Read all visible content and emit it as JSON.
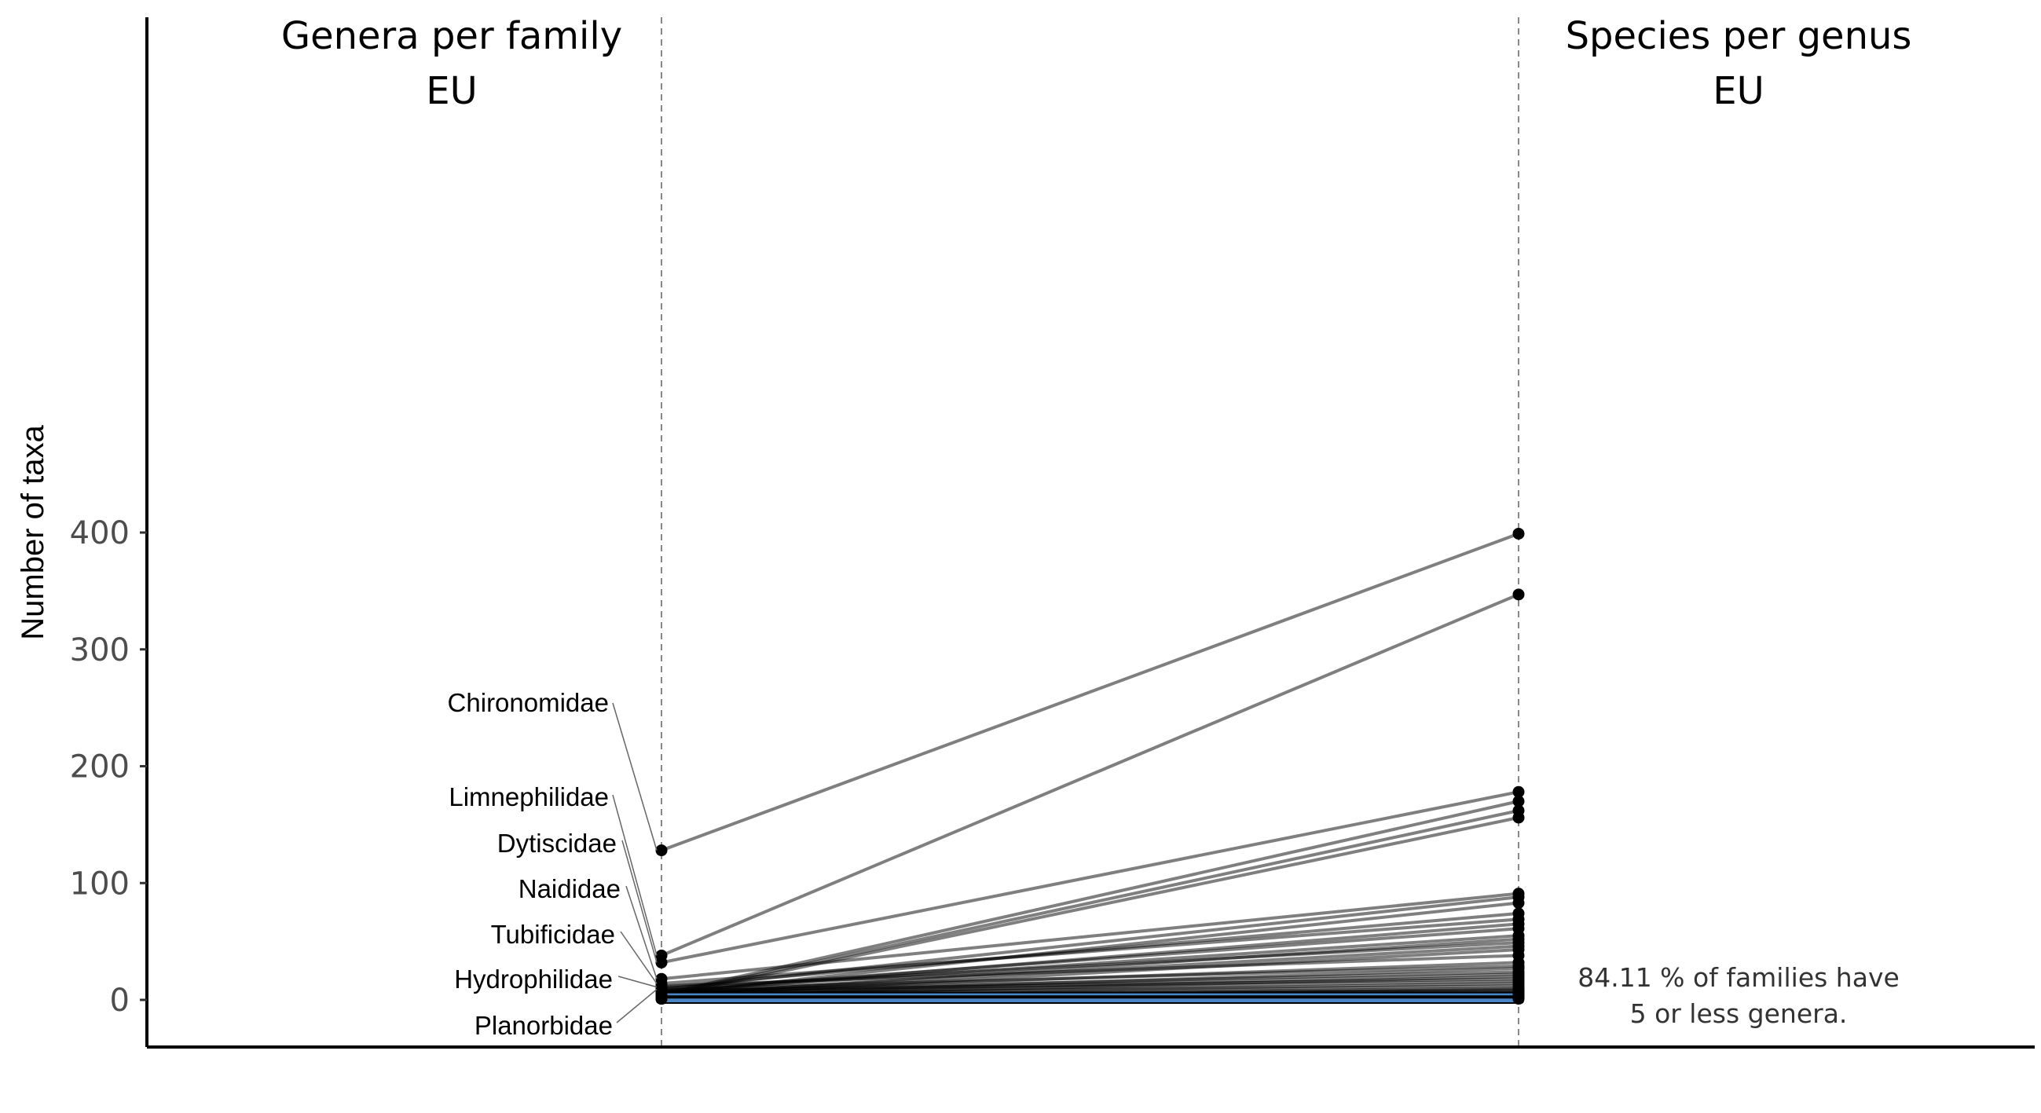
{
  "chart_data": {
    "type": "line",
    "ylabel": "Number of taxa",
    "xlabel": "",
    "ylim": [
      -20,
      420
    ],
    "yticks": [
      0,
      100,
      200,
      300,
      400
    ],
    "grid": false,
    "panels": [
      {
        "title_line1": "Genera per family",
        "title_line2": "EU"
      },
      {
        "title_line1": "Species per genus",
        "title_line2": "EU"
      }
    ],
    "labeled_families": [
      {
        "name": "Chironomidae",
        "genera": 128
      },
      {
        "name": "Limnephilidae",
        "genera": 38
      },
      {
        "name": "Dytiscidae",
        "genera": 32
      },
      {
        "name": "Naididae",
        "genera": 18
      },
      {
        "name": "Tubificidae",
        "genera": 14
      },
      {
        "name": "Hydrophilidae",
        "genera": 11
      },
      {
        "name": "Planorbidae",
        "genera": 9
      }
    ],
    "highlight_box": {
      "from": 0,
      "to": 5,
      "color": "#4a86c5"
    },
    "series": [
      {
        "values": [
          128,
          399
        ]
      },
      {
        "values": [
          38,
          347
        ]
      },
      {
        "values": [
          32,
          178
        ]
      },
      {
        "values": [
          5,
          170
        ]
      },
      {
        "values": [
          4,
          162
        ]
      },
      {
        "values": [
          3,
          156
        ]
      },
      {
        "values": [
          18,
          91
        ]
      },
      {
        "values": [
          9,
          88
        ]
      },
      {
        "values": [
          5,
          83
        ]
      },
      {
        "values": [
          11,
          74
        ]
      },
      {
        "values": [
          14,
          69
        ]
      },
      {
        "values": [
          6,
          65
        ]
      },
      {
        "values": [
          8,
          61
        ]
      },
      {
        "values": [
          7,
          55
        ]
      },
      {
        "values": [
          4,
          52
        ]
      },
      {
        "values": [
          10,
          49
        ]
      },
      {
        "values": [
          5,
          46
        ]
      },
      {
        "values": [
          3,
          43
        ]
      },
      {
        "values": [
          12,
          38
        ]
      },
      {
        "values": [
          6,
          32
        ]
      },
      {
        "values": [
          9,
          29
        ]
      },
      {
        "values": [
          4,
          27
        ]
      },
      {
        "values": [
          7,
          24
        ]
      },
      {
        "values": [
          5,
          22
        ]
      },
      {
        "values": [
          3,
          20
        ]
      },
      {
        "values": [
          8,
          18
        ]
      },
      {
        "values": [
          6,
          16
        ]
      },
      {
        "values": [
          4,
          14
        ]
      },
      {
        "values": [
          5,
          12
        ]
      },
      {
        "values": [
          3,
          10
        ]
      },
      {
        "values": [
          2,
          9
        ]
      },
      {
        "values": [
          4,
          8
        ]
      },
      {
        "values": [
          3,
          7
        ]
      },
      {
        "values": [
          2,
          6
        ]
      },
      {
        "values": [
          1,
          5
        ]
      },
      {
        "values": [
          2,
          4
        ]
      },
      {
        "values": [
          1,
          3
        ]
      },
      {
        "values": [
          1,
          2
        ]
      },
      {
        "values": [
          1,
          1
        ]
      }
    ],
    "annotation_line1": "84.11 % of families have",
    "annotation_line2": "5 or less genera."
  }
}
